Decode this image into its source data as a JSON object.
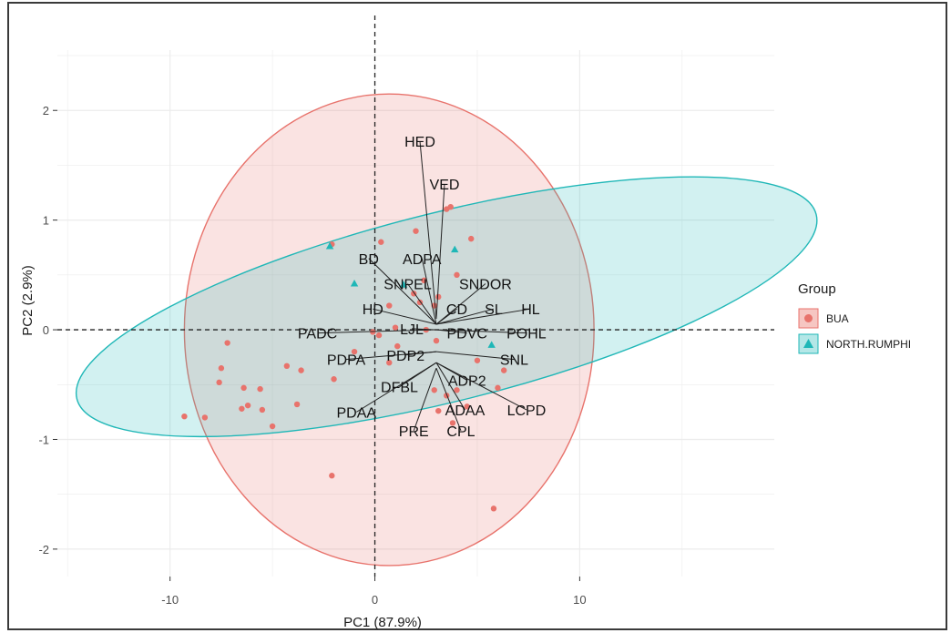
{
  "chart_data": {
    "type": "scatter",
    "xlabel": "PC1 (87.9%)",
    "ylabel": "PC2 (2.9%)",
    "xlim": [
      -15.5,
      19.5
    ],
    "ylim": [
      -2.25,
      2.55
    ],
    "xticks": [
      -10,
      0,
      10
    ],
    "xtick_labels": [
      "-10",
      "0",
      "10"
    ],
    "yticks": [
      -2,
      -1,
      0,
      1,
      2
    ],
    "ytick_labels": [
      "-2",
      "-1",
      "0",
      "1",
      "2"
    ],
    "grid": true,
    "legend": {
      "title": "Group",
      "position": "right"
    },
    "colors": {
      "BUA": "#e8736c",
      "NORTH.RUMPHI": "#1fb7b7",
      "reference_line": "#222222",
      "loading_line": "#222222",
      "grid": "#ececec"
    },
    "series": [
      {
        "name": "BUA",
        "marker": "circle",
        "points": [
          [
            2.4,
            0.45
          ],
          [
            3.1,
            0.3
          ],
          [
            4.0,
            0.5
          ],
          [
            2.9,
            0.22
          ],
          [
            1.9,
            0.33
          ],
          [
            2.2,
            0.25
          ],
          [
            3.5,
            1.1
          ],
          [
            3.7,
            1.12
          ],
          [
            2.0,
            0.9
          ],
          [
            4.7,
            0.83
          ],
          [
            0.3,
            0.8
          ],
          [
            -2.1,
            0.78
          ],
          [
            0.7,
            0.22
          ],
          [
            -0.1,
            -0.02
          ],
          [
            0.2,
            -0.05
          ],
          [
            2.5,
            0.0
          ],
          [
            3.0,
            -0.1
          ],
          [
            1.1,
            -0.15
          ],
          [
            -1.0,
            -0.2
          ],
          [
            0.7,
            -0.3
          ],
          [
            -3.6,
            -0.37
          ],
          [
            -2.0,
            -0.45
          ],
          [
            4.0,
            -0.55
          ],
          [
            4.5,
            -0.7
          ],
          [
            3.5,
            -0.6
          ],
          [
            5.0,
            -0.28
          ],
          [
            6.3,
            -0.37
          ],
          [
            6.0,
            -0.53
          ],
          [
            2.9,
            -0.55
          ],
          [
            3.1,
            -0.74
          ],
          [
            3.8,
            -0.85
          ],
          [
            -3.8,
            -0.68
          ],
          [
            -5.6,
            -0.54
          ],
          [
            -5.5,
            -0.73
          ],
          [
            -6.2,
            -0.69
          ],
          [
            -6.4,
            -0.53
          ],
          [
            -7.5,
            -0.35
          ],
          [
            -7.6,
            -0.48
          ],
          [
            -7.2,
            -0.12
          ],
          [
            -5.0,
            -0.88
          ],
          [
            -6.5,
            -0.72
          ],
          [
            -9.3,
            -0.79
          ],
          [
            -8.3,
            -0.8
          ],
          [
            -2.1,
            -1.33
          ],
          [
            5.8,
            -1.63
          ],
          [
            -4.3,
            -0.33
          ],
          [
            1.0,
            0.02
          ]
        ]
      },
      {
        "name": "NORTH.RUMPHI",
        "marker": "triangle",
        "points": [
          [
            -2.2,
            0.76
          ],
          [
            3.9,
            0.73
          ],
          [
            -1.0,
            0.42
          ],
          [
            1.4,
            0.41
          ],
          [
            5.7,
            -0.14
          ]
        ]
      }
    ],
    "ellipses": [
      {
        "group": "BUA",
        "center": [
          0.7,
          0.0
        ],
        "rx_units": 10.0,
        "ry_units": 2.15,
        "rotation_deg": 0
      },
      {
        "group": "NORTH.RUMPHI",
        "center": [
          3.5,
          0.21
        ],
        "rx_units": 18.6,
        "ry_units": 0.86,
        "rotation_deg": -14
      }
    ],
    "loadings": [
      {
        "label": "HED",
        "end": [
          3.0,
          0.1
        ],
        "text_pos": [
          2.2,
          1.72
        ]
      },
      {
        "label": "VED",
        "end": [
          3.0,
          0.1
        ],
        "text_pos": [
          3.4,
          1.33
        ]
      },
      {
        "label": "BD",
        "end": [
          3.0,
          0.05
        ],
        "text_pos": [
          -0.3,
          0.65
        ]
      },
      {
        "label": "ADPA",
        "end": [
          3.0,
          0.05
        ],
        "text_pos": [
          2.3,
          0.65
        ]
      },
      {
        "label": "SNPEL",
        "end": [
          3.0,
          0.05
        ],
        "text_pos": [
          1.6,
          0.42
        ]
      },
      {
        "label": "SNDOR",
        "end": [
          3.0,
          0.05
        ],
        "text_pos": [
          5.4,
          0.42
        ]
      },
      {
        "label": "HD",
        "end": [
          3.0,
          0.05
        ],
        "text_pos": [
          -0.1,
          0.19
        ]
      },
      {
        "label": "CD",
        "end": [
          3.0,
          0.05
        ],
        "text_pos": [
          4.0,
          0.19
        ]
      },
      {
        "label": "SL",
        "end": [
          3.0,
          0.05
        ],
        "text_pos": [
          5.8,
          0.19
        ]
      },
      {
        "label": "HL",
        "end": [
          3.0,
          0.05
        ],
        "text_pos": [
          7.6,
          0.19
        ]
      },
      {
        "label": "LJL",
        "end": [
          3.0,
          0.0
        ],
        "text_pos": [
          1.8,
          0.01
        ]
      },
      {
        "label": "PADC",
        "end": [
          3.0,
          0.0
        ],
        "text_pos": [
          -2.8,
          -0.03
        ]
      },
      {
        "label": "PDVC",
        "end": [
          3.0,
          0.0
        ],
        "text_pos": [
          4.5,
          -0.03
        ]
      },
      {
        "label": "POHL",
        "end": [
          3.0,
          0.0
        ],
        "text_pos": [
          7.4,
          -0.03
        ]
      },
      {
        "label": "PDPA",
        "end": [
          3.0,
          -0.2
        ],
        "text_pos": [
          -1.4,
          -0.27
        ]
      },
      {
        "label": "PDP2",
        "end": [
          3.0,
          -0.2
        ],
        "text_pos": [
          1.5,
          -0.23
        ]
      },
      {
        "label": "SNL",
        "end": [
          3.0,
          -0.2
        ],
        "text_pos": [
          6.8,
          -0.27
        ]
      },
      {
        "label": "ADP2",
        "end": [
          3.0,
          -0.3
        ],
        "text_pos": [
          4.5,
          -0.46
        ]
      },
      {
        "label": "DFBL",
        "end": [
          3.0,
          -0.3
        ],
        "text_pos": [
          1.2,
          -0.52
        ]
      },
      {
        "label": "ADAA",
        "end": [
          3.0,
          -0.3
        ],
        "text_pos": [
          4.4,
          -0.73
        ]
      },
      {
        "label": "LCPD",
        "end": [
          3.0,
          -0.3
        ],
        "text_pos": [
          7.4,
          -0.73
        ]
      },
      {
        "label": "PDAA",
        "end": [
          3.0,
          -0.3
        ],
        "text_pos": [
          -0.9,
          -0.75
        ]
      },
      {
        "label": "PRE",
        "end": [
          3.0,
          -0.35
        ],
        "text_pos": [
          1.9,
          -0.92
        ]
      },
      {
        "label": "CPL",
        "end": [
          3.0,
          -0.35
        ],
        "text_pos": [
          4.2,
          -0.92
        ]
      }
    ]
  }
}
